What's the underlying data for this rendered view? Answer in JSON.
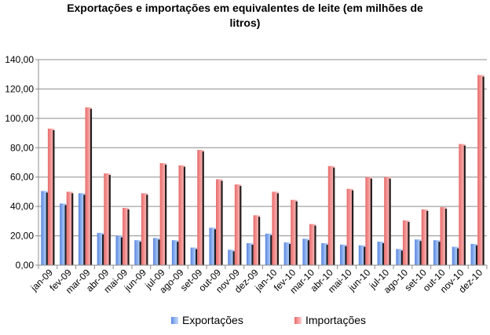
{
  "chart_data": {
    "type": "bar",
    "title_line1": "Exportações e importações em equivalentes de leite (em milhões de",
    "title_line2": "litros)",
    "categories": [
      "jan-09",
      "fev-09",
      "mar-09",
      "abr-09",
      "mai-09",
      "jun-09",
      "jul-09",
      "ago-09",
      "set-09",
      "out-09",
      "nov-09",
      "dez-09",
      "jan-10",
      "fev-10",
      "mar-10",
      "abr-10",
      "mai-10",
      "jun-10",
      "jul-10",
      "ago-10",
      "set-10",
      "out-10",
      "nov-10",
      "dez-10"
    ],
    "series": [
      {
        "name": "Exportações",
        "color": "#7fa7e8",
        "values": [
          50.5,
          42,
          49,
          22,
          20,
          17,
          18.5,
          17,
          12,
          25.5,
          10.5,
          15,
          21.5,
          15.5,
          18,
          15,
          14,
          13.5,
          16,
          11,
          17.5,
          17,
          12.5,
          14.5
        ]
      },
      {
        "name": "Importações",
        "color": "#f08080",
        "values": [
          93,
          50,
          107.5,
          62.5,
          39,
          49,
          69.5,
          68,
          78.5,
          58.5,
          55,
          34,
          50,
          44.5,
          28,
          67.5,
          52,
          60,
          60,
          30.5,
          38,
          39.5,
          82.5,
          129.5
        ]
      }
    ],
    "ylim": [
      0,
      140
    ],
    "yticks": [
      "0,00",
      "20,00",
      "40,00",
      "60,00",
      "80,00",
      "100,00",
      "120,00",
      "140,00"
    ],
    "legend_position": "bottom",
    "grid": true
  }
}
